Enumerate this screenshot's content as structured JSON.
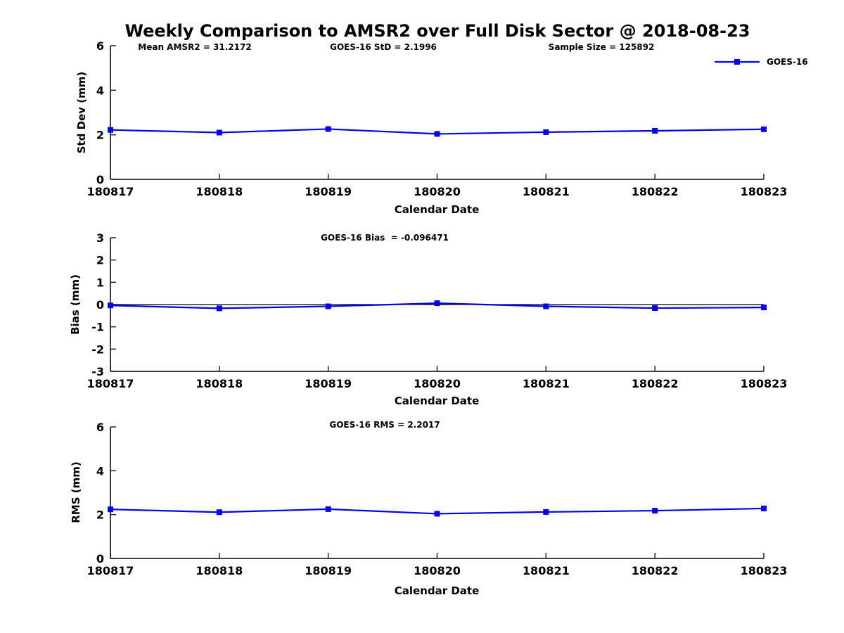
{
  "title": "Weekly Comparison to AMSR2 over Full Disk Sector @ 2018-08-23",
  "colors": {
    "line": "#0000EE",
    "axis": "#262626",
    "zero_line": "#000000"
  },
  "legend": {
    "label": "GOES-16",
    "position": "top-right",
    "box": false
  },
  "chart_data": [
    {
      "type": "line",
      "ylabel": "Std Dev (mm)",
      "xlabel": "Calendar Date",
      "annotations": [
        "Mean AMSR2 = 31.2172",
        "GOES-16 StD = 2.1996",
        "Sample Size = 125892"
      ],
      "categories": [
        "180817",
        "180818",
        "180819",
        "180820",
        "180821",
        "180822",
        "180823"
      ],
      "series": [
        {
          "name": "GOES-16",
          "values": [
            2.22,
            2.1,
            2.26,
            2.04,
            2.12,
            2.18,
            2.25
          ]
        }
      ],
      "ylim": [
        0,
        6
      ],
      "yticks": [
        0,
        2,
        4,
        6
      ],
      "grid": false,
      "zero_line": false,
      "marker": "square"
    },
    {
      "type": "line",
      "ylabel": "Bias (mm)",
      "xlabel": "Calendar Date",
      "annotations": [
        "GOES-16 Bias  = -0.096471"
      ],
      "categories": [
        "180817",
        "180818",
        "180819",
        "180820",
        "180821",
        "180822",
        "180823"
      ],
      "series": [
        {
          "name": "GOES-16",
          "values": [
            -0.04,
            -0.17,
            -0.08,
            0.06,
            -0.08,
            -0.16,
            -0.13
          ]
        }
      ],
      "ylim": [
        -3,
        3
      ],
      "yticks": [
        3,
        2,
        1,
        0,
        -1,
        -2,
        -3
      ],
      "grid": false,
      "zero_line": true,
      "marker": "square"
    },
    {
      "type": "line",
      "ylabel": "RMS (mm)",
      "xlabel": "Calendar Date",
      "annotations": [
        "GOES-16 RMS = 2.2017"
      ],
      "categories": [
        "180817",
        "180818",
        "180819",
        "180820",
        "180821",
        "180822",
        "180823"
      ],
      "series": [
        {
          "name": "GOES-16",
          "values": [
            2.24,
            2.11,
            2.25,
            2.04,
            2.12,
            2.18,
            2.28
          ]
        }
      ],
      "ylim": [
        0,
        6
      ],
      "yticks": [
        0,
        2,
        4,
        6
      ],
      "grid": false,
      "zero_line": false,
      "marker": "square"
    }
  ]
}
